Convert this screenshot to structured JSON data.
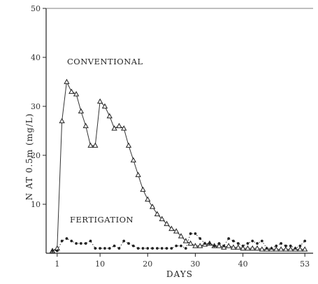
{
  "chart_data": {
    "type": "line",
    "title": "",
    "xlabel": "DAYS",
    "ylabel": "N AT 0.5m (mg/L)",
    "xlim": [
      0,
      54
    ],
    "ylim": [
      0,
      50
    ],
    "xticks": [
      1,
      10,
      20,
      30,
      40,
      53
    ],
    "yticks": [
      10,
      20,
      30,
      40,
      50
    ],
    "grid": false,
    "series": [
      {
        "name": "CONVENTIONAL",
        "marker": "triangle",
        "x": [
          0,
          1,
          2,
          3,
          4,
          5,
          6,
          7,
          8,
          9,
          10,
          11,
          12,
          13,
          14,
          15,
          16,
          17,
          18,
          19,
          20,
          21,
          22,
          23,
          24,
          25,
          26,
          27,
          28,
          29,
          30,
          31,
          32,
          33,
          34,
          35,
          36,
          37,
          38,
          39,
          40,
          41,
          42,
          43,
          44,
          45,
          46,
          47,
          48,
          49,
          50,
          51,
          52,
          53
        ],
        "y": [
          0.5,
          1,
          27,
          35,
          33,
          32.5,
          29,
          26,
          22,
          22,
          31,
          30,
          28,
          25.5,
          26,
          25.5,
          22,
          19,
          16,
          13,
          11,
          9.5,
          8,
          7,
          6,
          5,
          4.5,
          3.5,
          2.5,
          2,
          1.5,
          1.5,
          1.8,
          2,
          1.5,
          1.5,
          1.2,
          1.5,
          1.2,
          1.2,
          1,
          1,
          1,
          1,
          0.8,
          0.8,
          0.8,
          0.8,
          0.8,
          0.8,
          0.8,
          0.8,
          0.8,
          0.8
        ]
      },
      {
        "name": "FERTIGATION",
        "marker": "dot",
        "x": [
          0,
          1,
          2,
          3,
          4,
          5,
          6,
          7,
          8,
          9,
          10,
          11,
          12,
          13,
          14,
          15,
          16,
          17,
          18,
          19,
          20,
          21,
          22,
          23,
          24,
          25,
          26,
          27,
          28,
          29,
          30,
          31,
          32,
          33,
          34,
          35,
          36,
          37,
          38,
          39,
          40,
          41,
          42,
          43,
          44,
          45,
          46,
          47,
          48,
          49,
          50,
          51,
          52,
          53
        ],
        "y": [
          0.5,
          0.5,
          2.5,
          3,
          2.5,
          2,
          2,
          2,
          2.5,
          1,
          1,
          1,
          1,
          1.5,
          1,
          2.5,
          2,
          1.5,
          1,
          1,
          1,
          1,
          1,
          1,
          1,
          1,
          1.5,
          1.5,
          1,
          4,
          4,
          3,
          2,
          2,
          1.5,
          2,
          1.5,
          3,
          2.5,
          2,
          1.5,
          2,
          2.5,
          2,
          2.5,
          1,
          1,
          1.5,
          2,
          1.5,
          1.5,
          1,
          1.5,
          2.5
        ]
      }
    ]
  }
}
